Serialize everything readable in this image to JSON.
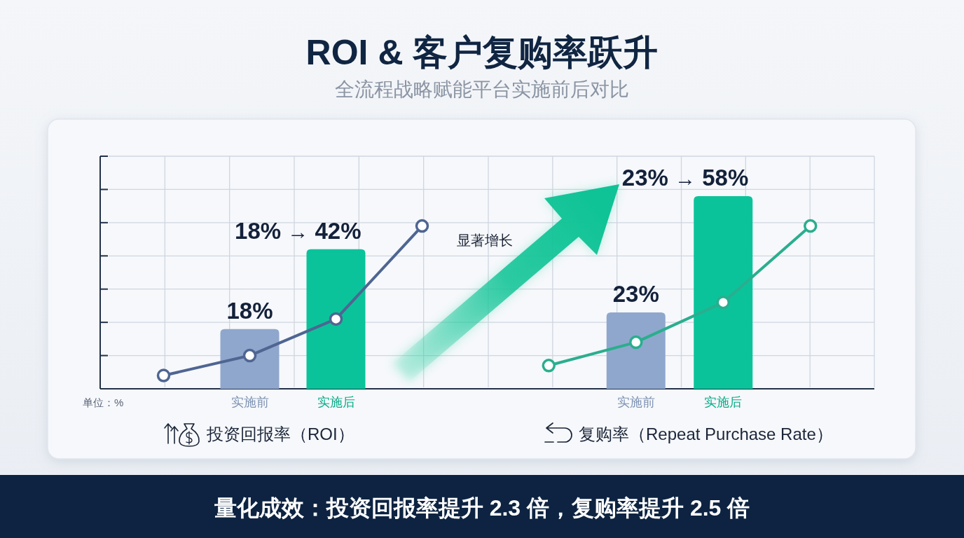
{
  "chart_data": [
    {
      "type": "bar",
      "title": "ROI & 客户复购率跃升",
      "subtitle": "全流程战略赋能平台实施前后对比",
      "xlabel": "投资回报率（ROI）",
      "categories": [
        null,
        "实施前",
        "实施后",
        null
      ],
      "series": [
        {
          "colors": [
            null,
            "#8fa7cc",
            "#0bc39b",
            null
          ],
          "values": [
            null,
            18,
            42,
            null
          ],
          "value_labels": [
            null,
            "18%",
            null,
            null
          ]
        },
        {
          "type": "line",
          "color": "#4f6592",
          "values": [
            4,
            10,
            21,
            49
          ]
        }
      ],
      "ylim": [
        0,
        70
      ],
      "yticks": [
        {
          "value": 10,
          "label": null
        },
        {
          "value": 20,
          "label": null
        },
        {
          "value": 30,
          "label": null
        },
        {
          "value": 40,
          "label": null
        },
        {
          "value": 50,
          "label": null
        },
        {
          "value": 60,
          "label": null
        },
        {
          "value": 70,
          "label": null
        }
      ],
      "grid": true,
      "marker": "circle",
      "tick_labels": "x",
      "annotations": [
        {
          "text": "18% → 42%",
          "x": "实施后",
          "y": 42
        },
        "单位：%",
        "显著增长",
        "量化成效：投资回报率提升 2.3 倍，复购率提升 2.5 倍"
      ]
    },
    {
      "type": "bar",
      "xlabel": "复购率（Repeat Purchase Rate）",
      "categories": [
        null,
        "实施前",
        "实施后",
        null
      ],
      "series": [
        {
          "colors": [
            null,
            "#8fa7cc",
            "#0bc39b",
            null
          ],
          "values": [
            null,
            23,
            58,
            null
          ],
          "value_labels": [
            null,
            "23%",
            null,
            null
          ]
        },
        {
          "type": "line",
          "color": "#2aae8e",
          "values": [
            7,
            14,
            26,
            49
          ]
        }
      ],
      "ylim": [
        0,
        70
      ],
      "yticks": [
        {
          "value": 10,
          "label": null
        },
        {
          "value": 20,
          "label": null
        },
        {
          "value": 30,
          "label": null
        },
        {
          "value": 40,
          "label": null
        },
        {
          "value": 50,
          "label": null
        },
        {
          "value": 60,
          "label": null
        },
        {
          "value": 70,
          "label": null
        }
      ],
      "grid": true,
      "marker": "circle",
      "tick_labels": "x",
      "annotations": [
        {
          "text": "23% → 58%",
          "x": "实施后",
          "y": 58
        }
      ]
    }
  ]
}
